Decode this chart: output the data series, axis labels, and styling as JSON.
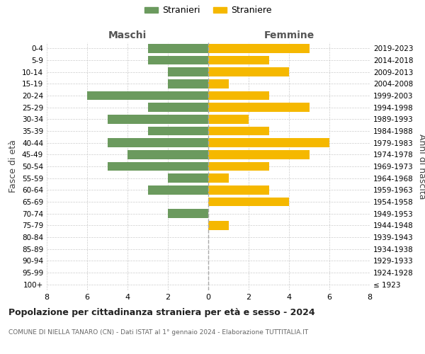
{
  "age_groups": [
    "100+",
    "95-99",
    "90-94",
    "85-89",
    "80-84",
    "75-79",
    "70-74",
    "65-69",
    "60-64",
    "55-59",
    "50-54",
    "45-49",
    "40-44",
    "35-39",
    "30-34",
    "25-29",
    "20-24",
    "15-19",
    "10-14",
    "5-9",
    "0-4"
  ],
  "birth_years": [
    "≤ 1923",
    "1924-1928",
    "1929-1933",
    "1934-1938",
    "1939-1943",
    "1944-1948",
    "1949-1953",
    "1954-1958",
    "1959-1963",
    "1964-1968",
    "1969-1973",
    "1974-1978",
    "1979-1983",
    "1984-1988",
    "1989-1993",
    "1994-1998",
    "1999-2003",
    "2004-2008",
    "2009-2013",
    "2014-2018",
    "2019-2023"
  ],
  "maschi": [
    0,
    0,
    0,
    0,
    0,
    0,
    2,
    0,
    3,
    2,
    5,
    4,
    5,
    3,
    5,
    3,
    6,
    2,
    2,
    3,
    3
  ],
  "femmine": [
    0,
    0,
    0,
    0,
    0,
    1,
    0,
    4,
    3,
    1,
    3,
    5,
    6,
    3,
    2,
    5,
    3,
    1,
    4,
    3,
    5
  ],
  "color_maschi": "#6b9a5e",
  "color_femmine": "#f5b800",
  "title_main": "Popolazione per cittadinanza straniera per età e sesso - 2024",
  "title_sub": "COMUNE DI NIELLA TANARO (CN) - Dati ISTAT al 1° gennaio 2024 - Elaborazione TUTTITALIA.IT",
  "label_maschi": "Maschi",
  "label_femmine": "Femmine",
  "legend_stranieri": "Stranieri",
  "legend_straniere": "Straniere",
  "ylabel_left": "Fasce di età",
  "ylabel_right": "Anni di nascita",
  "xlim": 8,
  "background_color": "#ffffff",
  "grid_color": "#cccccc"
}
